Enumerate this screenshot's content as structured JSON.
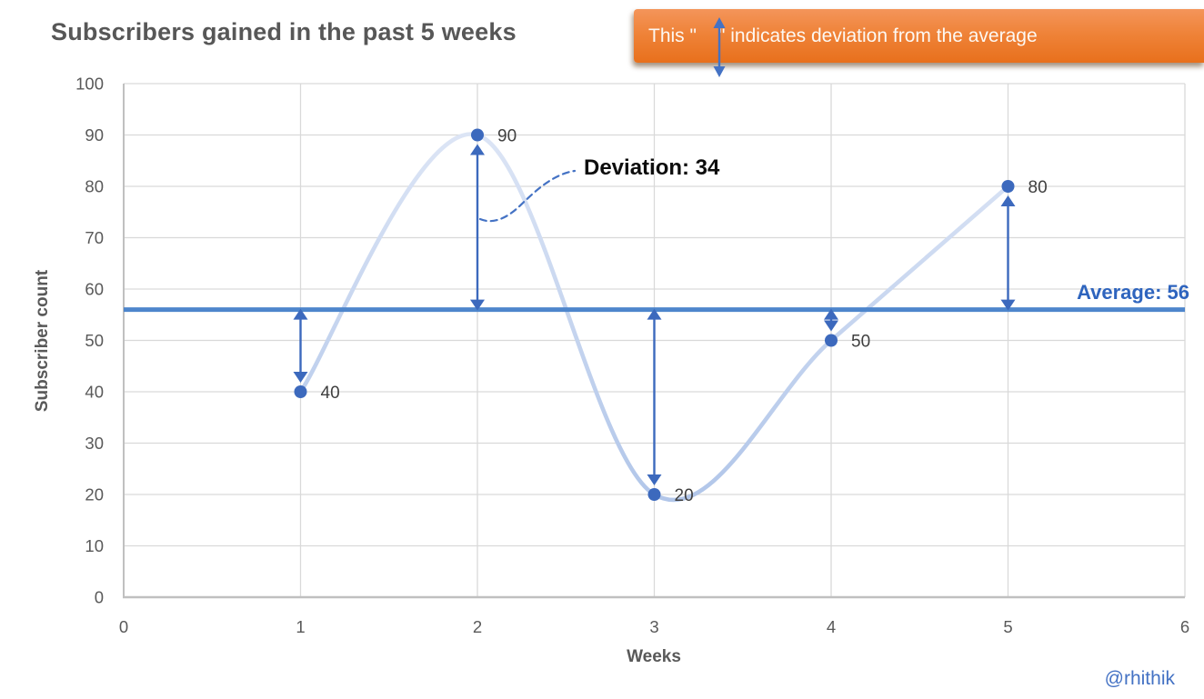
{
  "title": "Subscribers gained in the past 5 weeks",
  "banner": {
    "prefix": "This \"",
    "suffix": "\" indicates deviation from the average",
    "icon": "double-vertical-arrow"
  },
  "annotations": {
    "deviation_label": "Deviation: 34",
    "average_label": "Average: 56"
  },
  "credit": "@rhithik",
  "chart_data": {
    "type": "line",
    "title": "Subscribers gained in the past 5 weeks",
    "x": [
      1,
      2,
      3,
      4,
      5
    ],
    "values": [
      40,
      90,
      20,
      50,
      80
    ],
    "data_labels": [
      "40",
      "90",
      "20",
      "50",
      "80"
    ],
    "average": 56,
    "deviation_called_out": 34,
    "xlabel": "Weeks",
    "ylabel": "Subscriber count",
    "xlim": [
      0,
      6
    ],
    "ylim": [
      0,
      100
    ],
    "x_ticks": [
      0,
      1,
      2,
      3,
      4,
      5,
      6
    ],
    "y_ticks": [
      0,
      10,
      20,
      30,
      40,
      50,
      60,
      70,
      80,
      90,
      100
    ],
    "grid": true,
    "smooth": true,
    "marker": "circle",
    "legend": "none"
  },
  "colors": {
    "accent_blue": "#3c69bd",
    "average_line": "#4e86cc",
    "curve_top": "#e2e9f7",
    "curve_bottom": "#a6bee6",
    "grid": "#d9d9d9",
    "axis": "#c0c0c0",
    "tick_text": "#595959",
    "data_label_text": "#3f3f3f",
    "banner_orange": "#ed7d31",
    "annotation_blue": "#4472c4"
  }
}
